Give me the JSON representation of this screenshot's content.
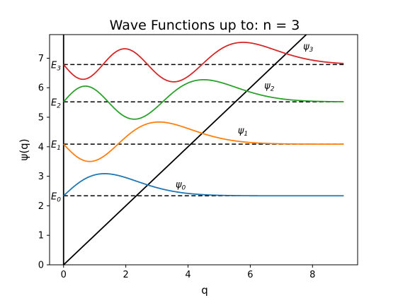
{
  "chart_data": {
    "type": "line",
    "title": "Wave Functions up to: n = 3",
    "xlabel": "q",
    "ylabel": "ψ(q)",
    "xlim": [
      -0.45,
      9.45
    ],
    "ylim": [
      0,
      7.8
    ],
    "xticks": [
      0,
      2,
      4,
      6,
      8
    ],
    "yticks": [
      0,
      1,
      2,
      3,
      4,
      5,
      6,
      7
    ],
    "grid": false,
    "potential": {
      "color": "#000000",
      "x": [
        0,
        9
      ],
      "y": [
        0,
        9
      ]
    },
    "levels": [
      {
        "n": 0,
        "energy": 2.338,
        "energy_label": "E",
        "energy_sub": "0",
        "psi_label": "ψ",
        "psi_sub": "0",
        "psi_label_pos": [
          3.6,
          2.62
        ],
        "color": "#1f77b4"
      },
      {
        "n": 1,
        "energy": 4.088,
        "energy_label": "E",
        "energy_sub": "1",
        "psi_label": "ψ",
        "psi_sub": "1",
        "psi_label_pos": [
          5.6,
          4.45
        ],
        "color": "#ff7f0e"
      },
      {
        "n": 2,
        "energy": 5.521,
        "energy_label": "E",
        "energy_sub": "2",
        "psi_label": "ψ",
        "psi_sub": "2",
        "psi_label_pos": [
          6.45,
          5.97
        ],
        "color": "#2ca02c"
      },
      {
        "n": 3,
        "energy": 6.787,
        "energy_label": "E",
        "energy_sub": "3",
        "psi_label": "ψ",
        "psi_sub": "3",
        "psi_label_pos": [
          7.7,
          7.3
        ],
        "color": "#d62728"
      }
    ]
  }
}
